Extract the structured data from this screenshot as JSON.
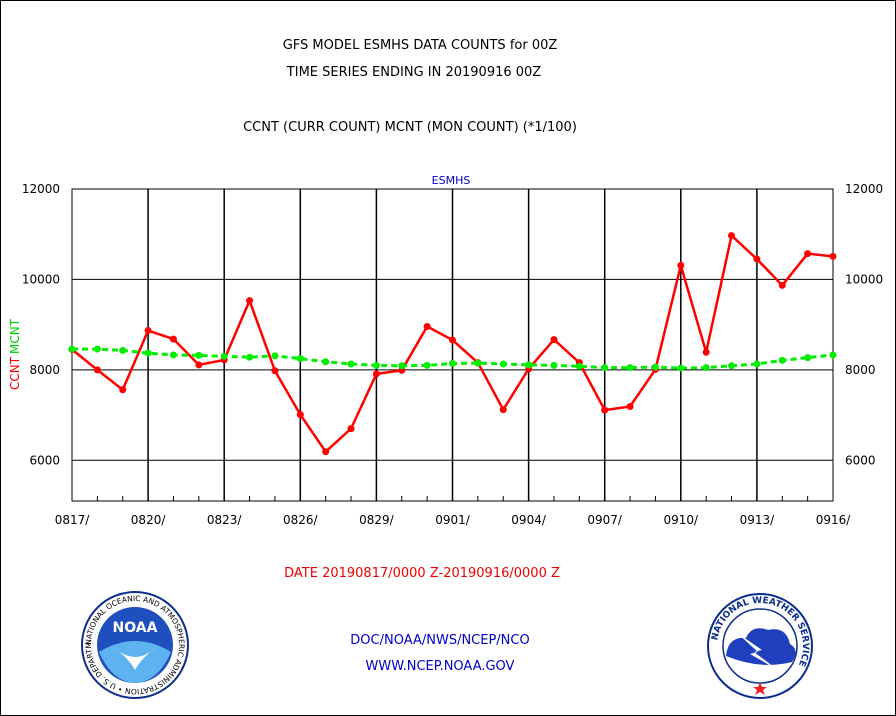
{
  "header": {
    "title_line1": "GFS MODEL ESMHS DATA COUNTS for 00Z",
    "title_line2": "TIME SERIES ENDING IN 20190916 00Z",
    "subtitle": "CCNT (CURR COUNT) MCNT (MON COUNT) (*1/100)"
  },
  "footer": {
    "date_range": "DATE 20190817/0000 Z-20190916/0000 Z",
    "agency": "DOC/NOAA/NWS/NCEP/NCO",
    "website": "WWW.NCEP.NOAA.GOV",
    "noaa_logo_text": "NOAA",
    "noaa_seal_text": "NATIONAL OCEANIC AND ATMOSPHERIC ADMINISTRATION • U.S. DEPARTMENT OF COMMERCE •",
    "nws_seal_text": "NATIONAL WEATHER SERVICE"
  },
  "colors": {
    "ccnt": "#ff0000",
    "mcnt": "#00ee00",
    "title_blue": "#0000cc"
  },
  "chart_data": {
    "type": "line",
    "title": "ESMHS",
    "ylabel_left": [
      "CCNT",
      "MCNT"
    ],
    "ylim": [
      5100,
      12000
    ],
    "yticks": [
      6000,
      8000,
      10000,
      12000
    ],
    "ytick_labels": [
      "6000",
      "8000",
      "10000",
      "12000"
    ],
    "xtick_labels": [
      "0817/",
      "0820/",
      "0823/",
      "0826/",
      "0829/",
      "0901/",
      "0904/",
      "0907/",
      "0910/",
      "0913/",
      "0916/"
    ],
    "x_day_count": 31,
    "grid": true,
    "series": [
      {
        "name": "CCNT",
        "color": "#ff0000",
        "values": [
          8450,
          8000,
          7560,
          8870,
          8680,
          8110,
          8220,
          9530,
          7980,
          7010,
          6190,
          6700,
          7910,
          7990,
          8960,
          8660,
          8160,
          7120,
          8020,
          8670,
          8160,
          7110,
          7190,
          8010,
          10310,
          8390,
          10970,
          10450,
          9870,
          10570,
          10510
        ]
      },
      {
        "name": "MCNT",
        "color": "#00ee00",
        "values": [
          8460,
          8460,
          8430,
          8370,
          8330,
          8320,
          8300,
          8280,
          8310,
          8250,
          8180,
          8130,
          8100,
          8090,
          8100,
          8140,
          8150,
          8130,
          8110,
          8100,
          8080,
          8050,
          8050,
          8060,
          8040,
          8050,
          8090,
          8130,
          8210,
          8270,
          8330
        ]
      }
    ]
  }
}
